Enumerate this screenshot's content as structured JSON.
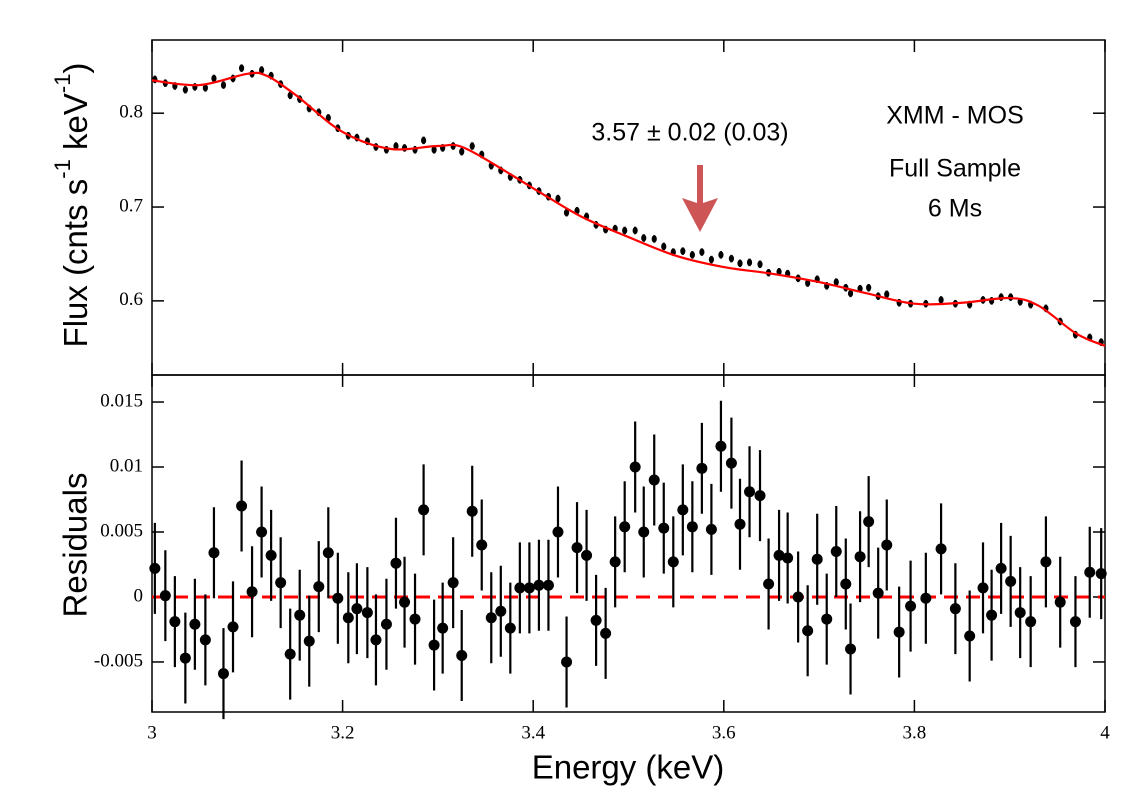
{
  "chart_data": [
    {
      "type": "scatter",
      "ylabel": [
        "Flux (cnts s",
        "-1",
        " keV",
        "-1",
        ")"
      ],
      "ylim": [
        0.521,
        0.878
      ],
      "yticks": [
        0.6,
        0.7,
        0.8
      ],
      "annotations": [
        "3.57 ± 0.02 (0.03)",
        "XMM - MOS",
        "Full Sample",
        "6 Ms"
      ],
      "series": [
        {
          "type": "scatter",
          "color": "#000000",
          "yerr": 0.004,
          "x": [
            3.003,
            3.014,
            3.024,
            3.035,
            3.045,
            3.056,
            3.065,
            3.075,
            3.085,
            3.094,
            3.105,
            3.115,
            3.125,
            3.135,
            3.145,
            3.155,
            3.165,
            3.175,
            3.185,
            3.195,
            3.206,
            3.215,
            3.226,
            3.235,
            3.246,
            3.256,
            3.265,
            3.276,
            3.285,
            3.296,
            3.305,
            3.316,
            3.325,
            3.336,
            3.346,
            3.356,
            3.366,
            3.376,
            3.386,
            3.396,
            3.406,
            3.416,
            3.426,
            3.435,
            3.446,
            3.456,
            3.466,
            3.476,
            3.486,
            3.496,
            3.507,
            3.516,
            3.527,
            3.537,
            3.547,
            3.557,
            3.567,
            3.577,
            3.587,
            3.597,
            3.608,
            3.617,
            3.627,
            3.638,
            3.647,
            3.658,
            3.667,
            3.678,
            3.688,
            3.698,
            3.708,
            3.718,
            3.728,
            3.733,
            3.743,
            3.752,
            3.762,
            3.771,
            3.784,
            3.796,
            3.812,
            3.828,
            3.843,
            3.858,
            3.872,
            3.881,
            3.891,
            3.901,
            3.911,
            3.922,
            3.938,
            3.953,
            3.969,
            3.984,
            3.996
          ],
          "values": [
            0.836,
            0.832,
            0.829,
            0.825,
            0.828,
            0.827,
            0.837,
            0.83,
            0.837,
            0.848,
            0.842,
            0.846,
            0.84,
            0.831,
            0.819,
            0.815,
            0.805,
            0.801,
            0.795,
            0.784,
            0.776,
            0.774,
            0.77,
            0.764,
            0.761,
            0.765,
            0.763,
            0.761,
            0.771,
            0.761,
            0.763,
            0.765,
            0.759,
            0.765,
            0.756,
            0.744,
            0.739,
            0.732,
            0.729,
            0.723,
            0.717,
            0.711,
            0.709,
            0.694,
            0.696,
            0.69,
            0.681,
            0.676,
            0.677,
            0.675,
            0.675,
            0.667,
            0.666,
            0.658,
            0.652,
            0.653,
            0.649,
            0.652,
            0.644,
            0.649,
            0.645,
            0.64,
            0.641,
            0.639,
            0.63,
            0.631,
            0.629,
            0.624,
            0.619,
            0.623,
            0.616,
            0.62,
            0.614,
            0.608,
            0.613,
            0.614,
            0.605,
            0.607,
            0.598,
            0.597,
            0.597,
            0.601,
            0.597,
            0.596,
            0.601,
            0.6,
            0.604,
            0.604,
            0.599,
            0.596,
            0.592,
            0.578,
            0.564,
            0.561,
            0.556
          ]
        },
        {
          "type": "line",
          "color": "#ff0000",
          "x": [
            3.0,
            3.05,
            3.1,
            3.12,
            3.15,
            3.2,
            3.25,
            3.3,
            3.33,
            3.4,
            3.45,
            3.5,
            3.55,
            3.6,
            3.65,
            3.7,
            3.75,
            3.8,
            3.85,
            3.9,
            3.93,
            3.97,
            4.0
          ],
          "values": [
            0.835,
            0.83,
            0.842,
            0.84,
            0.82,
            0.78,
            0.762,
            0.765,
            0.762,
            0.72,
            0.69,
            0.668,
            0.648,
            0.636,
            0.629,
            0.62,
            0.608,
            0.597,
            0.598,
            0.603,
            0.595,
            0.565,
            0.552
          ]
        }
      ]
    },
    {
      "type": "scatter",
      "xlabel": "Energy (keV)",
      "ylabel": "Residuals",
      "xlim": [
        3,
        4
      ],
      "xticks": [
        3,
        3.2,
        3.4,
        3.6,
        3.8,
        4
      ],
      "ylim": [
        -0.00885,
        0.01708
      ],
      "yticks": [
        -0.005,
        0,
        0.005,
        0.01,
        0.015
      ],
      "hline": {
        "value": 0,
        "color": "#ff0000"
      },
      "series": [
        {
          "type": "scatter",
          "color": "#000000",
          "yerr": 0.0035,
          "x": [
            3.003,
            3.014,
            3.024,
            3.035,
            3.045,
            3.056,
            3.065,
            3.075,
            3.085,
            3.094,
            3.105,
            3.115,
            3.125,
            3.135,
            3.145,
            3.155,
            3.165,
            3.175,
            3.185,
            3.195,
            3.206,
            3.215,
            3.226,
            3.235,
            3.246,
            3.256,
            3.265,
            3.276,
            3.285,
            3.296,
            3.305,
            3.316,
            3.325,
            3.336,
            3.346,
            3.356,
            3.366,
            3.376,
            3.386,
            3.396,
            3.406,
            3.416,
            3.426,
            3.435,
            3.446,
            3.456,
            3.466,
            3.476,
            3.486,
            3.496,
            3.507,
            3.516,
            3.527,
            3.537,
            3.547,
            3.557,
            3.567,
            3.577,
            3.587,
            3.597,
            3.608,
            3.617,
            3.627,
            3.638,
            3.647,
            3.658,
            3.667,
            3.678,
            3.688,
            3.698,
            3.708,
            3.718,
            3.728,
            3.733,
            3.743,
            3.752,
            3.762,
            3.771,
            3.784,
            3.796,
            3.812,
            3.828,
            3.843,
            3.858,
            3.872,
            3.881,
            3.891,
            3.901,
            3.911,
            3.922,
            3.938,
            3.953,
            3.969,
            3.984,
            3.996
          ],
          "values": [
            0.0022,
            0.0001,
            -0.0019,
            -0.0047,
            -0.0021,
            -0.0033,
            0.0034,
            -0.0059,
            -0.0023,
            0.007,
            0.0004,
            0.005,
            0.0032,
            0.0011,
            -0.0044,
            -0.0014,
            -0.0034,
            0.0008,
            0.0034,
            -0.0001,
            -0.0016,
            -0.0009,
            -0.0012,
            -0.0033,
            -0.0021,
            0.0026,
            -0.0004,
            -0.0017,
            0.0067,
            -0.0037,
            -0.0024,
            0.0011,
            -0.0045,
            0.0066,
            0.004,
            -0.0016,
            -0.0011,
            -0.0024,
            0.0007,
            0.0007,
            0.0009,
            0.0009,
            0.005,
            -0.005,
            0.0038,
            0.0032,
            -0.0018,
            -0.0028,
            0.0027,
            0.0054,
            0.01,
            0.005,
            0.009,
            0.0053,
            0.0027,
            0.0067,
            0.0054,
            0.0099,
            0.0052,
            0.0116,
            0.0103,
            0.0056,
            0.0081,
            0.0078,
            0.001,
            0.0032,
            0.003,
            0.0,
            -0.0026,
            0.0029,
            -0.0017,
            0.0035,
            0.001,
            -0.004,
            0.0031,
            0.0058,
            0.0003,
            0.004,
            -0.0027,
            -0.0007,
            -0.0001,
            0.0037,
            -0.0009,
            -0.003,
            0.0007,
            -0.0014,
            0.0022,
            0.0012,
            -0.0012,
            -0.0019,
            0.0027,
            -0.0004,
            -0.0019,
            0.0019,
            0.0018
          ]
        }
      ]
    }
  ]
}
